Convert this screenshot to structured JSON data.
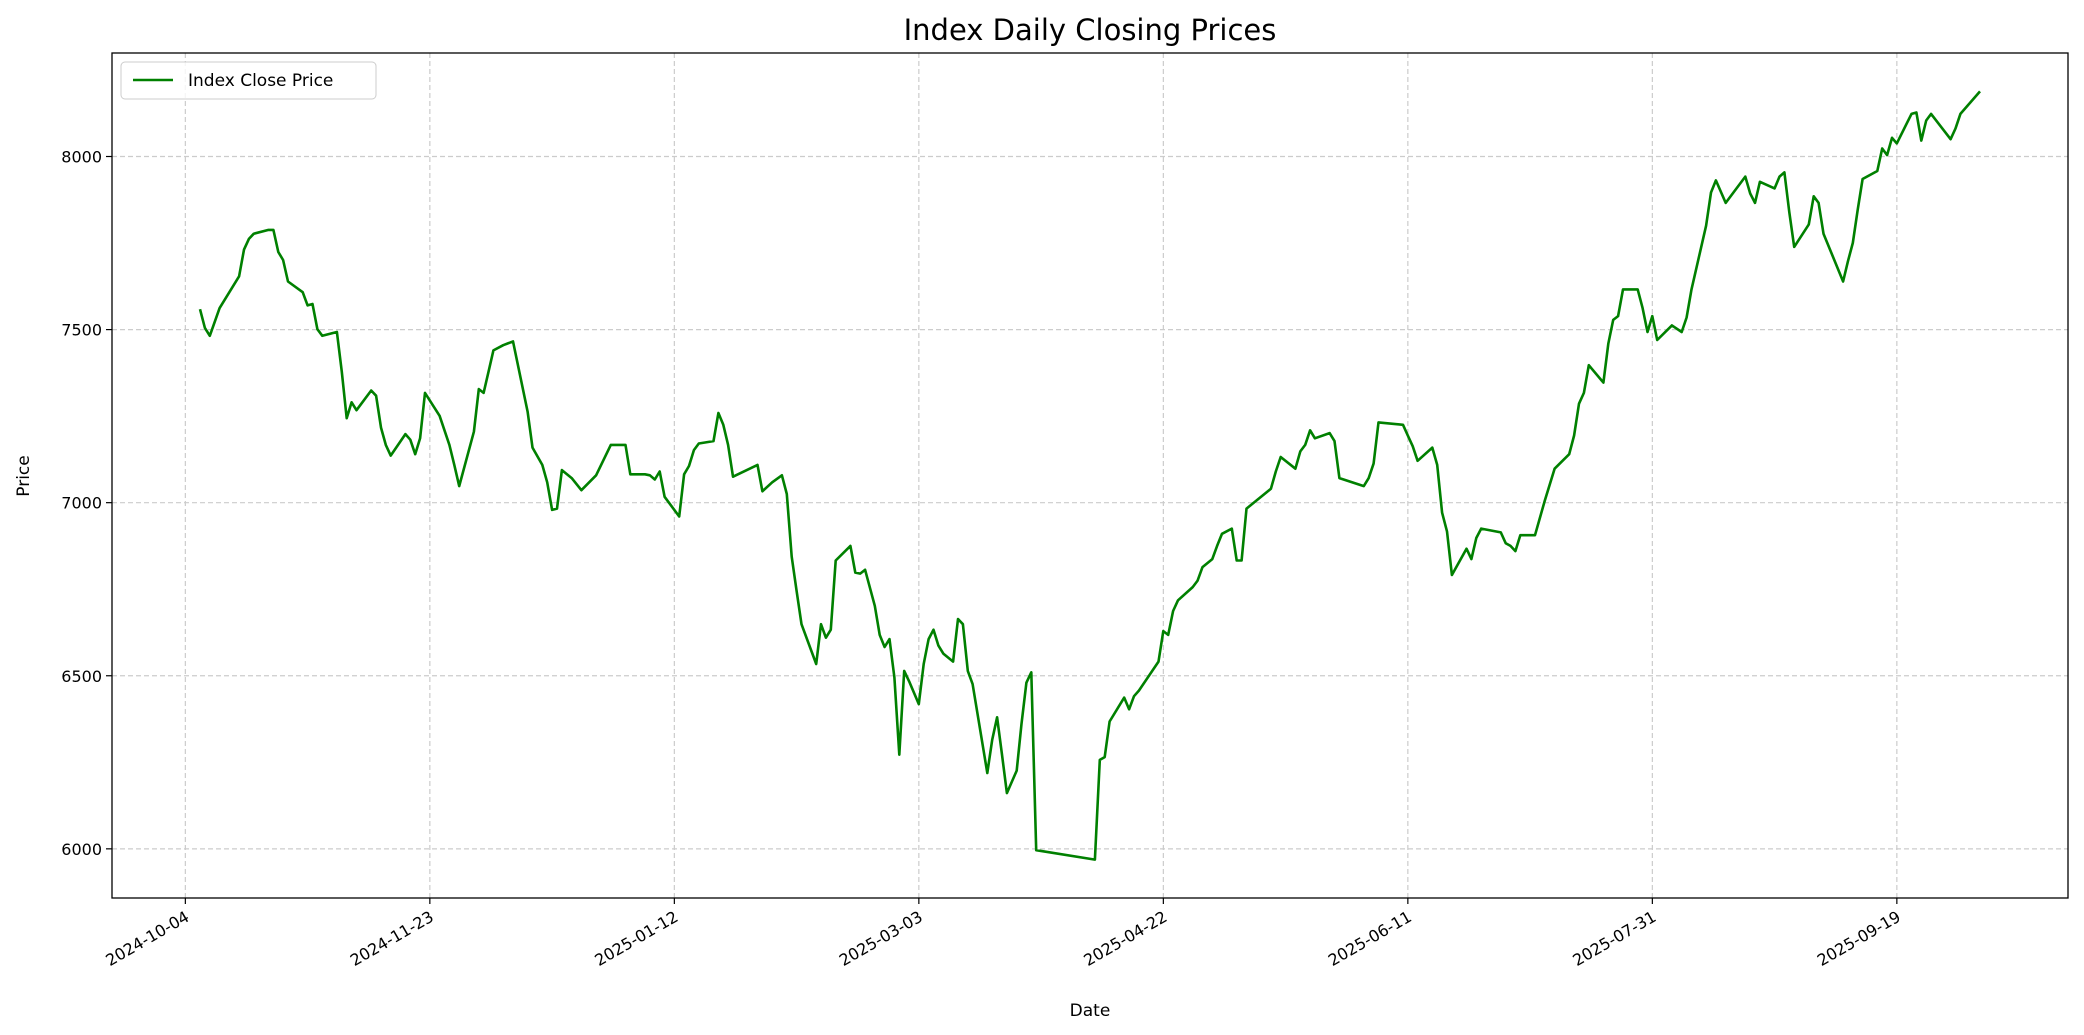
{
  "chart_data": {
    "type": "line",
    "title": "Index Daily Closing Prices",
    "xlabel": "Date",
    "ylabel": "Price",
    "x_start_date": "2024-10-04",
    "x_unit": "days since 2024-10-04",
    "xlim_days": [
      -15,
      385
    ],
    "ylim": [
      5858,
      8299
    ],
    "grid": true,
    "legend_position": "top-left",
    "colors": {
      "line": "#008000",
      "grid": "#cccccc",
      "axes": "#000000"
    },
    "x_ticks": [
      {
        "label": "2024-10-04",
        "day": 0
      },
      {
        "label": "2024-11-23",
        "day": 50
      },
      {
        "label": "2025-01-12",
        "day": 100
      },
      {
        "label": "2025-03-03",
        "day": 150
      },
      {
        "label": "2025-04-22",
        "day": 200
      },
      {
        "label": "2025-06-11",
        "day": 250
      },
      {
        "label": "2025-07-31",
        "day": 300
      },
      {
        "label": "2025-09-19",
        "day": 350
      }
    ],
    "y_ticks": [
      6000,
      6500,
      7000,
      7500,
      8000
    ],
    "y_tick_labels": [
      "6000",
      "6500",
      "7000",
      "7500",
      "8000"
    ],
    "series": [
      {
        "name": "Index Close Price",
        "points": [
          [
            3,
            7559
          ],
          [
            4,
            7505
          ],
          [
            5,
            7482
          ],
          [
            7,
            7562
          ],
          [
            11,
            7654
          ],
          [
            12,
            7731
          ],
          [
            13,
            7762
          ],
          [
            14,
            7777
          ],
          [
            17,
            7788
          ],
          [
            18,
            7788
          ],
          [
            19,
            7724
          ],
          [
            20,
            7701
          ],
          [
            21,
            7639
          ],
          [
            24,
            7608
          ],
          [
            25,
            7570
          ],
          [
            26,
            7574
          ],
          [
            27,
            7501
          ],
          [
            28,
            7482
          ],
          [
            31,
            7493
          ],
          [
            32,
            7378
          ],
          [
            33,
            7244
          ],
          [
            34,
            7290
          ],
          [
            35,
            7267
          ],
          [
            38,
            7324
          ],
          [
            39,
            7309
          ],
          [
            40,
            7217
          ],
          [
            41,
            7167
          ],
          [
            42,
            7136
          ],
          [
            45,
            7198
          ],
          [
            46,
            7182
          ],
          [
            47,
            7140
          ],
          [
            48,
            7186
          ],
          [
            49,
            7317
          ],
          [
            52,
            7251
          ],
          [
            54,
            7167
          ],
          [
            55,
            7109
          ],
          [
            56,
            7048
          ],
          [
            59,
            7205
          ],
          [
            60,
            7328
          ],
          [
            61,
            7317
          ],
          [
            62,
            7378
          ],
          [
            63,
            7440
          ],
          [
            65,
            7455
          ],
          [
            67,
            7466
          ],
          [
            70,
            7263
          ],
          [
            71,
            7159
          ],
          [
            73,
            7109
          ],
          [
            74,
            7059
          ],
          [
            75,
            6979
          ],
          [
            76,
            6983
          ],
          [
            77,
            7094
          ],
          [
            79,
            7071
          ],
          [
            81,
            7036
          ],
          [
            84,
            7079
          ],
          [
            87,
            7167
          ],
          [
            90,
            7167
          ],
          [
            91,
            7082
          ],
          [
            94,
            7082
          ],
          [
            95,
            7079
          ],
          [
            96,
            7067
          ],
          [
            97,
            7090
          ],
          [
            98,
            7017
          ],
          [
            101,
            6960
          ],
          [
            102,
            7082
          ],
          [
            103,
            7106
          ],
          [
            104,
            7152
          ],
          [
            105,
            7171
          ],
          [
            108,
            7178
          ],
          [
            109,
            7259
          ],
          [
            110,
            7225
          ],
          [
            111,
            7167
          ],
          [
            112,
            7075
          ],
          [
            117,
            7109
          ],
          [
            118,
            7033
          ],
          [
            120,
            7059
          ],
          [
            122,
            7079
          ],
          [
            123,
            7025
          ],
          [
            124,
            6844
          ],
          [
            125,
            6745
          ],
          [
            126,
            6649
          ],
          [
            129,
            6534
          ],
          [
            130,
            6649
          ],
          [
            131,
            6610
          ],
          [
            132,
            6633
          ],
          [
            133,
            6833
          ],
          [
            136,
            6875
          ],
          [
            137,
            6798
          ],
          [
            138,
            6795
          ],
          [
            139,
            6806
          ],
          [
            141,
            6702
          ],
          [
            142,
            6618
          ],
          [
            143,
            6583
          ],
          [
            144,
            6606
          ],
          [
            145,
            6495
          ],
          [
            146,
            6272
          ],
          [
            147,
            6514
          ],
          [
            148,
            6484
          ],
          [
            150,
            6418
          ],
          [
            151,
            6534
          ],
          [
            152,
            6606
          ],
          [
            153,
            6633
          ],
          [
            154,
            6587
          ],
          [
            155,
            6564
          ],
          [
            157,
            6541
          ],
          [
            158,
            6664
          ],
          [
            159,
            6649
          ],
          [
            160,
            6514
          ],
          [
            161,
            6476
          ],
          [
            164,
            6219
          ],
          [
            165,
            6315
          ],
          [
            166,
            6380
          ],
          [
            167,
            6272
          ],
          [
            168,
            6161
          ],
          [
            170,
            6226
          ],
          [
            171,
            6361
          ],
          [
            172,
            6480
          ],
          [
            173,
            6510
          ],
          [
            174,
            5996
          ],
          [
            186,
            5969
          ],
          [
            187,
            6257
          ],
          [
            188,
            6265
          ],
          [
            189,
            6368
          ],
          [
            192,
            6437
          ],
          [
            193,
            6403
          ],
          [
            194,
            6441
          ],
          [
            195,
            6457
          ],
          [
            199,
            6541
          ],
          [
            200,
            6629
          ],
          [
            201,
            6618
          ],
          [
            202,
            6687
          ],
          [
            203,
            6718
          ],
          [
            206,
            6756
          ],
          [
            207,
            6775
          ],
          [
            208,
            6814
          ],
          [
            210,
            6837
          ],
          [
            211,
            6875
          ],
          [
            212,
            6910
          ],
          [
            214,
            6925
          ],
          [
            215,
            6833
          ],
          [
            216,
            6833
          ],
          [
            217,
            6983
          ],
          [
            222,
            7040
          ],
          [
            223,
            7090
          ],
          [
            224,
            7132
          ],
          [
            227,
            7098
          ],
          [
            228,
            7148
          ],
          [
            229,
            7167
          ],
          [
            230,
            7209
          ],
          [
            231,
            7186
          ],
          [
            234,
            7201
          ],
          [
            235,
            7178
          ],
          [
            236,
            7071
          ],
          [
            241,
            7048
          ],
          [
            242,
            7071
          ],
          [
            243,
            7113
          ],
          [
            244,
            7232
          ],
          [
            249,
            7225
          ],
          [
            250,
            7194
          ],
          [
            251,
            7163
          ],
          [
            252,
            7121
          ],
          [
            255,
            7159
          ],
          [
            256,
            7109
          ],
          [
            257,
            6971
          ],
          [
            258,
            6917
          ],
          [
            259,
            6791
          ],
          [
            262,
            6867
          ],
          [
            263,
            6837
          ],
          [
            264,
            6898
          ],
          [
            265,
            6925
          ],
          [
            269,
            6914
          ],
          [
            270,
            6883
          ],
          [
            271,
            6875
          ],
          [
            272,
            6860
          ],
          [
            273,
            6906
          ],
          [
            276,
            6906
          ],
          [
            277,
            6956
          ],
          [
            278,
            7006
          ],
          [
            280,
            7098
          ],
          [
            283,
            7140
          ],
          [
            284,
            7194
          ],
          [
            285,
            7286
          ],
          [
            286,
            7317
          ],
          [
            287,
            7397
          ],
          [
            290,
            7347
          ],
          [
            291,
            7459
          ],
          [
            292,
            7528
          ],
          [
            293,
            7539
          ],
          [
            294,
            7616
          ],
          [
            297,
            7616
          ],
          [
            298,
            7562
          ],
          [
            299,
            7493
          ],
          [
            300,
            7539
          ],
          [
            301,
            7470
          ],
          [
            304,
            7512
          ],
          [
            306,
            7493
          ],
          [
            307,
            7535
          ],
          [
            308,
            7616
          ],
          [
            311,
            7800
          ],
          [
            312,
            7896
          ],
          [
            313,
            7931
          ],
          [
            315,
            7866
          ],
          [
            319,
            7942
          ],
          [
            320,
            7893
          ],
          [
            321,
            7866
          ],
          [
            322,
            7927
          ],
          [
            325,
            7908
          ],
          [
            326,
            7942
          ],
          [
            327,
            7954
          ],
          [
            328,
            7839
          ],
          [
            329,
            7739
          ],
          [
            332,
            7804
          ],
          [
            333,
            7885
          ],
          [
            334,
            7866
          ],
          [
            335,
            7777
          ],
          [
            339,
            7639
          ],
          [
            340,
            7697
          ],
          [
            341,
            7750
          ],
          [
            342,
            7846
          ],
          [
            343,
            7935
          ],
          [
            346,
            7958
          ],
          [
            347,
            8023
          ],
          [
            348,
            8004
          ],
          [
            349,
            8054
          ],
          [
            350,
            8038
          ],
          [
            353,
            8123
          ],
          [
            354,
            8127
          ],
          [
            355,
            8046
          ],
          [
            356,
            8104
          ],
          [
            357,
            8123
          ],
          [
            361,
            8050
          ],
          [
            362,
            8081
          ],
          [
            363,
            8123
          ],
          [
            367,
            8188
          ]
        ]
      }
    ]
  }
}
